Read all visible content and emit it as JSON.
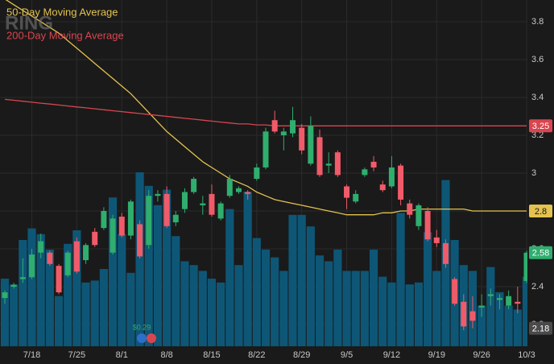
{
  "chart_data": {
    "type": "candlestick",
    "watermark": "RING",
    "categories": [
      null,
      null,
      null,
      "7/18",
      null,
      null,
      null,
      null,
      "7/25",
      null,
      null,
      null,
      null,
      "8/1",
      null,
      null,
      null,
      null,
      "8/8",
      null,
      null,
      null,
      null,
      "8/15",
      null,
      null,
      null,
      null,
      "8/22",
      null,
      null,
      null,
      null,
      "8/29",
      null,
      null,
      null,
      null,
      "9/5",
      null,
      null,
      null,
      null,
      "9/12",
      null,
      null,
      null,
      null,
      "9/19",
      null,
      null,
      null,
      null,
      "9/26",
      null,
      null,
      null,
      null,
      "10/3"
    ],
    "open": [
      2.34,
      2.4,
      2.44,
      2.45,
      2.58,
      2.58,
      2.51,
      2.46,
      2.64,
      2.54,
      2.69,
      2.71,
      2.58,
      2.77,
      2.67,
      2.73,
      2.62,
      2.88,
      2.89,
      2.74,
      2.81,
      2.9,
      2.83,
      2.89,
      2.76,
      2.88,
      2.9,
      2.9,
      2.97,
      3.03,
      3.28,
      3.2,
      3.21,
      3.24,
      3.05,
      3.19,
      3.04,
      3.11,
      2.93,
      2.85,
      2.99,
      3.06,
      2.94,
      2.93,
      3.04,
      2.84,
      2.72,
      2.8,
      2.66,
      2.63,
      2.44,
      2.32,
      2.27,
      2.29,
      2.35,
      2.33,
      2.3,
      2.32,
      2.43
    ],
    "high": [
      2.38,
      2.42,
      2.55,
      2.6,
      2.68,
      2.59,
      2.52,
      2.59,
      2.66,
      2.63,
      2.71,
      2.82,
      2.78,
      2.79,
      2.86,
      2.75,
      2.91,
      2.91,
      2.93,
      2.8,
      2.92,
      2.98,
      2.88,
      2.94,
      2.85,
      2.99,
      2.93,
      2.91,
      3.05,
      3.24,
      3.33,
      3.24,
      3.35,
      3.26,
      3.3,
      3.23,
      3.11,
      3.12,
      2.94,
      2.91,
      3.03,
      3.09,
      2.96,
      3.09,
      3.05,
      2.86,
      2.84,
      2.82,
      2.7,
      2.65,
      2.45,
      2.36,
      2.35,
      2.36,
      2.39,
      2.36,
      2.38,
      2.4,
      2.59
    ],
    "low": [
      2.31,
      2.39,
      2.42,
      2.44,
      2.55,
      2.51,
      2.36,
      2.45,
      2.47,
      2.52,
      2.61,
      2.7,
      2.57,
      2.66,
      2.65,
      2.55,
      2.6,
      2.85,
      2.71,
      2.72,
      2.79,
      2.89,
      2.78,
      2.77,
      2.75,
      2.87,
      2.89,
      2.86,
      2.96,
      3.02,
      3.21,
      3.12,
      3.19,
      3.1,
      3.04,
      2.98,
      3.0,
      2.98,
      2.81,
      2.84,
      2.98,
      3.01,
      2.9,
      2.92,
      2.83,
      2.76,
      2.7,
      2.64,
      2.61,
      2.5,
      2.3,
      2.17,
      2.18,
      2.24,
      2.3,
      2.28,
      2.28,
      2.26,
      2.42
    ],
    "close": [
      2.37,
      2.41,
      2.45,
      2.57,
      2.64,
      2.52,
      2.37,
      2.58,
      2.48,
      2.62,
      2.62,
      2.8,
      2.76,
      2.67,
      2.85,
      2.56,
      2.88,
      2.89,
      2.72,
      2.78,
      2.9,
      2.97,
      2.84,
      2.78,
      2.84,
      2.97,
      2.92,
      2.89,
      3.03,
      3.22,
      3.22,
      3.22,
      3.28,
      3.12,
      3.25,
      2.99,
      3.05,
      2.99,
      2.87,
      2.89,
      3.02,
      3.03,
      2.91,
      3.03,
      2.86,
      2.78,
      2.83,
      2.65,
      2.63,
      2.52,
      2.31,
      2.19,
      2.22,
      2.3,
      2.36,
      2.34,
      2.35,
      2.31,
      2.58
    ],
    "up_color": "#2fae6e",
    "down_color": "#f05b6a",
    "volume": {
      "color": "#0e5676",
      "lim": [
        0,
        100
      ],
      "values": [
        35,
        32,
        55,
        61,
        58,
        50,
        26,
        53,
        60,
        33,
        34,
        40,
        77,
        58,
        38,
        90,
        83,
        73,
        81,
        57,
        44,
        42,
        39,
        35,
        33,
        71,
        42,
        80,
        56,
        50,
        46,
        39,
        68,
        68,
        62,
        47,
        44,
        50,
        39,
        39,
        39,
        50,
        36,
        33,
        69,
        32,
        33,
        59,
        39,
        86,
        55,
        42,
        39,
        21,
        41,
        28,
        21,
        19,
        36
      ]
    },
    "series": [
      {
        "name": "50-Day Moving Average",
        "color": "#e3c24f",
        "values": [
          3.92,
          3.89,
          3.86,
          3.83,
          3.8,
          3.77,
          3.74,
          3.7,
          3.66,
          3.62,
          3.58,
          3.54,
          3.5,
          3.46,
          3.42,
          3.37,
          3.32,
          3.27,
          3.22,
          3.18,
          3.14,
          3.1,
          3.06,
          3.03,
          3.0,
          2.97,
          2.95,
          2.93,
          2.9,
          2.88,
          2.86,
          2.85,
          2.84,
          2.83,
          2.82,
          2.81,
          2.8,
          2.79,
          2.78,
          2.78,
          2.78,
          2.78,
          2.79,
          2.79,
          2.8,
          2.8,
          2.81,
          2.81,
          2.81,
          2.81,
          2.81,
          2.81,
          2.8,
          2.8,
          2.8,
          2.8,
          2.8,
          2.8,
          2.8
        ]
      },
      {
        "name": "200-Day Moving Average",
        "color": "#d9454f",
        "values": [
          3.39,
          3.385,
          3.38,
          3.375,
          3.37,
          3.365,
          3.36,
          3.355,
          3.35,
          3.345,
          3.34,
          3.335,
          3.33,
          3.325,
          3.32,
          3.315,
          3.31,
          3.305,
          3.3,
          3.295,
          3.29,
          3.285,
          3.28,
          3.275,
          3.27,
          3.265,
          3.26,
          3.26,
          3.255,
          3.255,
          3.25,
          3.25,
          3.25,
          3.25,
          3.25,
          3.25,
          3.25,
          3.25,
          3.25,
          3.25,
          3.25,
          3.25,
          3.25,
          3.25,
          3.25,
          3.25,
          3.25,
          3.25,
          3.25,
          3.25,
          3.25,
          3.25,
          3.25,
          3.25,
          3.25,
          3.25,
          3.25,
          3.25,
          3.25
        ]
      }
    ],
    "ylim": [
      2.085,
      3.915
    ],
    "yticks": [
      2.2,
      2.4,
      2.6,
      2.8,
      3,
      3.2,
      3.4,
      3.6,
      3.8
    ],
    "badges": [
      {
        "value": 3.25,
        "color": "#d9454f"
      },
      {
        "value": 2.8,
        "color": "#e3c24f"
      },
      {
        "value": 2.58,
        "color": "#2fae6e"
      },
      {
        "value": 2.18,
        "color": "#4a4a4a"
      }
    ],
    "annotation": "$0.29",
    "grid": true
  }
}
